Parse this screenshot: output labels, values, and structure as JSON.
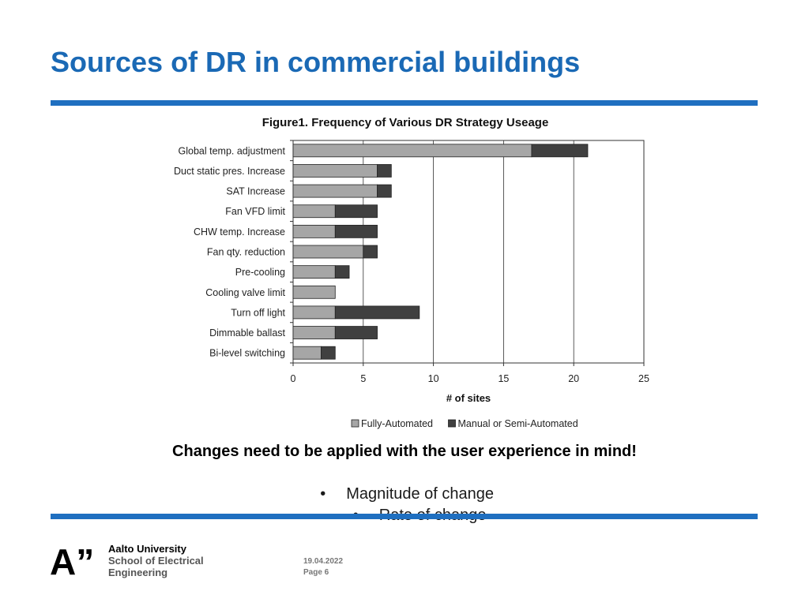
{
  "slide": {
    "title": "Sources of DR in commercial buildings",
    "caption": "Changes need to be applied with the user experience in mind!",
    "bullets": [
      "Magnitude of change",
      "Rate of change"
    ],
    "bullet_symbol": "•"
  },
  "footer": {
    "logo_mark": "A”",
    "university": "Aalto University",
    "school_line1": "School of Electrical",
    "school_line2": "Engineering",
    "date": "19.04.2022",
    "page": "Page 6"
  },
  "colors": {
    "title": "#1a69b5",
    "rule": "#1f6fc0",
    "fully_automated": "#a6a6a6",
    "manual": "#404040"
  },
  "chart_data": {
    "type": "bar",
    "orientation": "horizontal",
    "stacked": true,
    "title": "Figure1.  Frequency of Various DR Strategy Useage",
    "xlabel": "# of sites",
    "ylabel": "",
    "xlim": [
      0,
      25
    ],
    "xticks": [
      0,
      5,
      10,
      15,
      20,
      25
    ],
    "grid": true,
    "legend_position": "bottom",
    "categories": [
      "Global temp. adjustment",
      "Duct static pres. Increase",
      "SAT Increase",
      "Fan VFD limit",
      "CHW temp. Increase",
      "Fan qty. reduction",
      "Pre-cooling",
      "Cooling valve limit",
      "Turn off light",
      "Dimmable ballast",
      "Bi-level switching"
    ],
    "series": [
      {
        "name": "Fully-Automated",
        "color": "#a6a6a6",
        "values": [
          17,
          6,
          6,
          3,
          3,
          5,
          3,
          3,
          3,
          3,
          2
        ]
      },
      {
        "name": "Manual or Semi-Automated",
        "color": "#404040",
        "values": [
          4,
          1,
          1,
          3,
          3,
          1,
          1,
          0,
          6,
          3,
          1
        ]
      }
    ]
  }
}
